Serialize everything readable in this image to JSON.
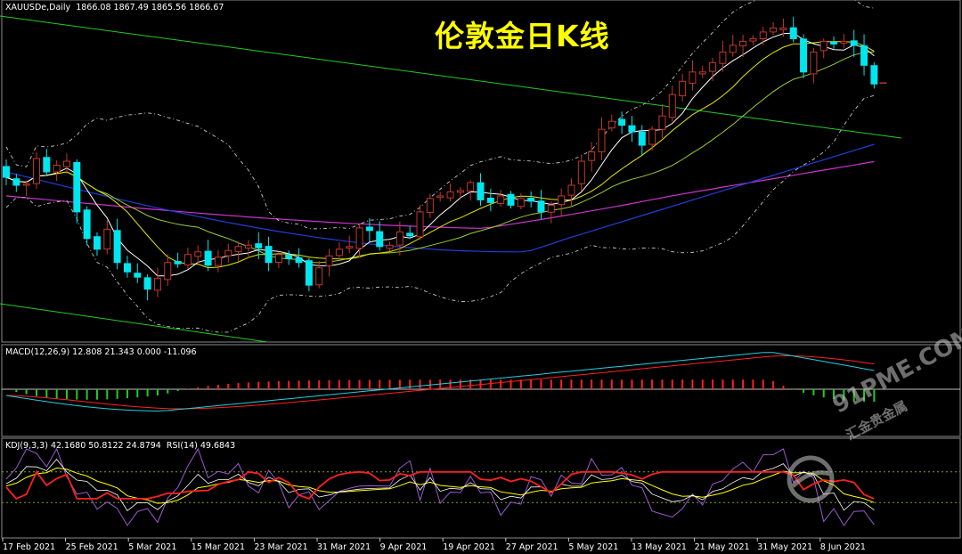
{
  "title": "伦敦金日K线",
  "header": {
    "symbol": "XAUUSDe,Daily",
    "quote": "1866.08 1867.49 1865.56 1866.67",
    "macd": "MACD(12,26,9) 12.808 21.343 0.000 -11.096",
    "kdj": "KDJ(9,3,3) 42.1680 50.8122 24.8794",
    "rsi": "RSI(14) 49.6843"
  },
  "watermark": {
    "text": "91PME.COM",
    "sub": "汇金贵金属"
  },
  "colors": {
    "bull": "#c0392b",
    "bear": "#00e5ee",
    "ma_fast": "#ffffff",
    "ma_mid": "#e6e600",
    "ma_slow": "#9acd32",
    "ma_long": "#1f3fd9",
    "ma_xlong": "#cc33cc",
    "channel": "#22cc22",
    "bands": "#c8c8c8",
    "k_line": "#ffffff",
    "d_line": "#ffff00",
    "j_line": "#9b59d0",
    "rsi_line": "#ff2020",
    "hist_up": "#ff2020",
    "hist_down": "#22cc22"
  },
  "chart_data": [
    {
      "type": "candlestick",
      "ylim": [
        1675,
        1925
      ],
      "x_labels": [
        "17 Feb 2021",
        "25 Feb 2021",
        "5 Mar 2021",
        "15 Mar 2021",
        "23 Mar 2021",
        "31 Mar 2021",
        "9 Apr 2021",
        "19 Apr 2021",
        "27 Apr 2021",
        "5 May 2021",
        "13 May 2021",
        "21 May 2021",
        "31 May 2021",
        "8 Jun 2021"
      ],
      "last_price": 1866.67,
      "closes": [
        1796,
        1790,
        1791,
        1810,
        1800,
        1805,
        1808,
        1770,
        1750,
        1742,
        1757,
        1732,
        1725,
        1721,
        1712,
        1720,
        1732,
        1731,
        1738,
        1740,
        1730,
        1736,
        1741,
        1744,
        1745,
        1743,
        1732,
        1738,
        1735,
        1732,
        1715,
        1728,
        1737,
        1742,
        1744,
        1758,
        1756,
        1744,
        1745,
        1755,
        1752,
        1770,
        1780,
        1782,
        1785,
        1786,
        1792,
        1779,
        1777,
        1782,
        1775,
        1780,
        1778,
        1770,
        1775,
        1782,
        1790,
        1808,
        1815,
        1832,
        1838,
        1835,
        1830,
        1820,
        1832,
        1842,
        1858,
        1868,
        1875,
        1875,
        1882,
        1890,
        1895,
        1898,
        1900,
        1905,
        1908,
        1908,
        1900,
        1875,
        1890,
        1898,
        1896,
        1898,
        1895,
        1880,
        1866
      ]
    },
    {
      "type": "line",
      "name": "MACD(12,26,9)",
      "macd": 12.808,
      "signal": 21.343,
      "histogram": -11.096
    },
    {
      "type": "line",
      "name": "KDJ(9,3,3) / RSI(14)",
      "K": 42.168,
      "D": 50.8122,
      "J": 24.8794,
      "RSI": 49.6843,
      "levels": [
        70,
        30
      ]
    }
  ]
}
